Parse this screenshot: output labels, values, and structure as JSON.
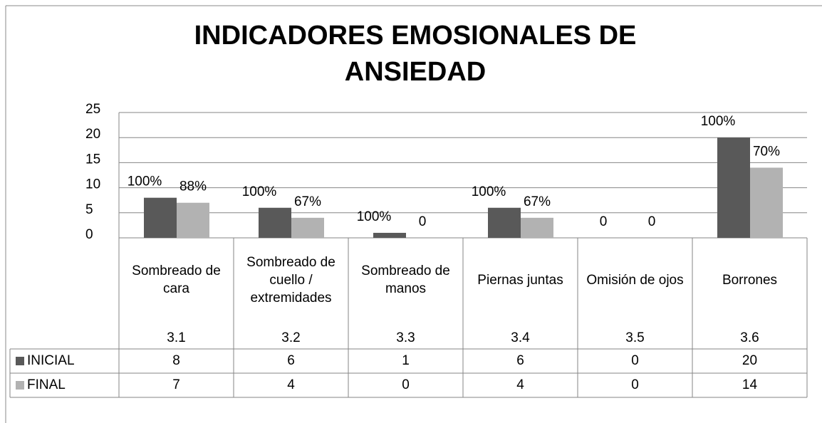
{
  "chart_data": {
    "type": "bar",
    "title": "INDICADORES EMOSIONALES DE ANSIEDAD",
    "categories": [
      "Sombreado de cara",
      "Sombreado de cuello / extremidades",
      "Sombreado de manos",
      "Piernas juntas",
      "Omisión de ojos",
      "Borrones"
    ],
    "subcategories": [
      "3.1",
      "3.2",
      "3.3",
      "3.4",
      "3.5",
      "3.6"
    ],
    "series": [
      {
        "name": "INICIAL",
        "color": "#595959",
        "values": [
          8,
          6,
          1,
          6,
          0,
          20
        ],
        "data_labels": [
          "100%",
          "100%",
          "100%",
          "100%",
          "0",
          "100%"
        ]
      },
      {
        "name": "FINAL",
        "color": "#b2b2b2",
        "values": [
          7,
          4,
          0,
          4,
          0,
          14
        ],
        "data_labels": [
          "88%",
          "67%",
          "0",
          "67%",
          "0",
          "70%"
        ]
      }
    ],
    "ylim": [
      0,
      25
    ],
    "yticks": [
      0,
      5,
      10,
      15,
      20,
      25
    ],
    "grid": true,
    "legend": "data-table"
  }
}
